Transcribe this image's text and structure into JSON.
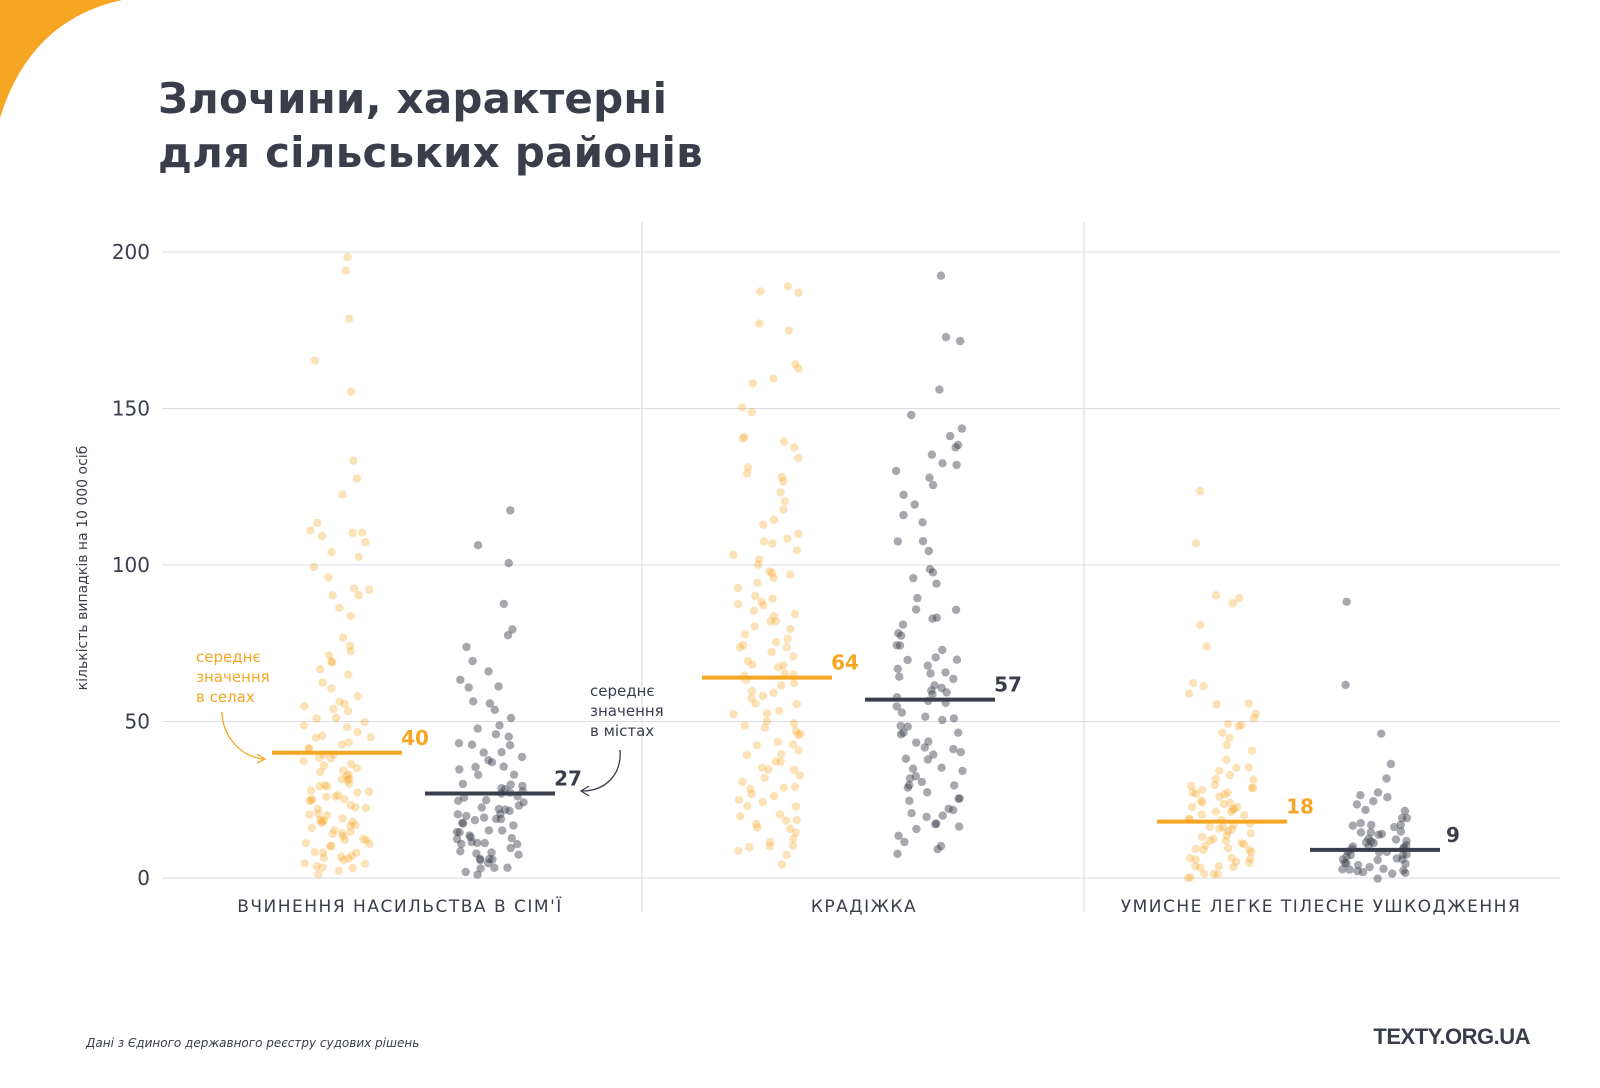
{
  "header": {
    "title_line1": "Злочини, характерні",
    "title_line2": "для сільських районів"
  },
  "colors": {
    "villages": "#f5a623",
    "cities": "#3a3e4b",
    "accent_corner": "#f5a623"
  },
  "annotations": {
    "villages_mean": [
      "середнє",
      "значення",
      "в селах"
    ],
    "cities_mean": [
      "середнє",
      "значення",
      "в містах"
    ]
  },
  "footer": {
    "source": "Дані з Єдиного державного реєстру судових рішень",
    "brand": "TEXTY.ORG.UA"
  },
  "chart_data": {
    "type": "scatter",
    "ylabel": "кількість випадків на 10 000 осіб",
    "ylim": [
      0,
      200
    ],
    "yticks": [
      0,
      50,
      100,
      150,
      200
    ],
    "grid": true,
    "groups": [
      {
        "category": "ВЧИНЕННЯ НАСИЛЬСТВА В СІМ'Ї",
        "series": [
          {
            "key": "villages",
            "mean": 40,
            "values": [
              198,
              195,
              179,
              166,
              156,
              133,
              127,
              122,
              114,
              111,
              111,
              110,
              109,
              108,
              104,
              102,
              99,
              96,
              92,
              92,
              91,
              90,
              87,
              83,
              76,
              74,
              72,
              71,
              70,
              68,
              66,
              64,
              62,
              60,
              58,
              57,
              56,
              55,
              54,
              53,
              52,
              51,
              50,
              49,
              48,
              47,
              46,
              45,
              45,
              44,
              43,
              42,
              41,
              40,
              40,
              39,
              38,
              37,
              37,
              36,
              35,
              35,
              34,
              33,
              33,
              32,
              31,
              31,
              30,
              30,
              29,
              29,
              28,
              28,
              27,
              27,
              26,
              26,
              25,
              25,
              24,
              24,
              23,
              23,
              22,
              22,
              21,
              21,
              20,
              20,
              19,
              19,
              18,
              18,
              17,
              17,
              16,
              16,
              15,
              15,
              14,
              14,
              13,
              13,
              12,
              12,
              11,
              11,
              10,
              10,
              9,
              9,
              8,
              8,
              7,
              7,
              6,
              6,
              5,
              5,
              4,
              4,
              3,
              3,
              2
            ]
          },
          {
            "key": "cities",
            "mean": 27,
            "values": [
              117,
              107,
              101,
              87,
              80,
              77,
              73,
              69,
              66,
              63,
              62,
              60,
              57,
              56,
              53,
              51,
              49,
              47,
              46,
              45,
              44,
              43,
              42,
              41,
              40,
              39,
              38,
              37,
              36,
              35,
              34,
              33,
              32,
              31,
              30,
              30,
              29,
              28,
              28,
              27,
              27,
              26,
              25,
              25,
              24,
              24,
              23,
              23,
              22,
              22,
              21,
              21,
              20,
              20,
              19,
              19,
              18,
              18,
              17,
              17,
              16,
              16,
              15,
              15,
              14,
              14,
              13,
              13,
              12,
              12,
              11,
              11,
              10,
              10,
              9,
              9,
              8,
              8,
              7,
              7,
              6,
              6,
              5,
              5,
              4,
              4,
              3,
              2,
              1
            ]
          }
        ]
      },
      {
        "category": "КРАДІЖКА",
        "series": [
          {
            "key": "villages",
            "mean": 64,
            "values": [
              189,
              188,
              187,
              177,
              175,
              165,
              162,
              160,
              158,
              151,
              148,
              141,
              140,
              139,
              137,
              134,
              131,
              129,
              128,
              127,
              124,
              120,
              117,
              114,
              112,
              110,
              109,
              108,
              106,
              104,
              103,
              101,
              100,
              98,
              97,
              96,
              95,
              94,
              92,
              91,
              90,
              89,
              88,
              87,
              86,
              84,
              83,
              82,
              81,
              80,
              79,
              78,
              77,
              76,
              75,
              74,
              73,
              72,
              71,
              70,
              69,
              68,
              67,
              66,
              65,
              64,
              63,
              62,
              61,
              60,
              59,
              58,
              57,
              56,
              55,
              54,
              53,
              52,
              51,
              50,
              49,
              48,
              47,
              46,
              45,
              44,
              43,
              42,
              41,
              40,
              39,
              38,
              37,
              36,
              35,
              34,
              33,
              32,
              31,
              30,
              29,
              28,
              27,
              26,
              25,
              24,
              23,
              22,
              21,
              20,
              19,
              18,
              17,
              16,
              15,
              14,
              13,
              12,
              11,
              10,
              9,
              8,
              7,
              4
            ]
          },
          {
            "key": "cities",
            "mean": 57,
            "values": [
              192,
              173,
              171,
              156,
              147,
              144,
              141,
              139,
              138,
              136,
              133,
              131,
              130,
              127,
              125,
              123,
              120,
              116,
              113,
              108,
              107,
              104,
              99,
              97,
              96,
              94,
              89,
              86,
              85,
              84,
              83,
              81,
              79,
              77,
              75,
              74,
              72,
              71,
              70,
              69,
              68,
              67,
              66,
              65,
              64,
              63,
              62,
              61,
              60,
              59,
              58,
              57,
              56,
              55,
              54,
              53,
              52,
              51,
              50,
              49,
              48,
              47,
              46,
              45,
              44,
              43,
              42,
              41,
              40,
              39,
              38,
              37,
              36,
              35,
              34,
              33,
              32,
              31,
              30,
              29,
              28,
              27,
              26,
              25,
              24,
              23,
              22,
              21,
              20,
              19,
              18,
              17,
              16,
              15,
              14,
              12,
              11,
              9,
              7
            ]
          }
        ]
      },
      {
        "category": "УМИСНЕ ЛЕГКЕ ТІЛЕСНЕ УШКОДЖЕННЯ",
        "series": [
          {
            "key": "villages",
            "mean": 18,
            "values": [
              123,
              107,
              90,
              89,
              88,
              80,
              74,
              63,
              62,
              58,
              56,
              55,
              53,
              52,
              50,
              49,
              48,
              46,
              44,
              42,
              40,
              38,
              36,
              35,
              34,
              33,
              32,
              31,
              30,
              30,
              29,
              29,
              28,
              28,
              27,
              27,
              26,
              26,
              25,
              25,
              24,
              24,
              23,
              23,
              22,
              22,
              21,
              21,
              20,
              20,
              19,
              19,
              18,
              18,
              17,
              17,
              16,
              16,
              15,
              15,
              14,
              14,
              13,
              13,
              12,
              12,
              11,
              11,
              10,
              10,
              9,
              9,
              8,
              8,
              7,
              7,
              6,
              6,
              5,
              5,
              4,
              4,
              3,
              3,
              2,
              2,
              1,
              1,
              0
            ]
          },
          {
            "key": "cities",
            "mean": 9,
            "values": [
              88,
              61,
              47,
              36,
              31,
              28,
              27,
              25,
              24,
              23,
              22,
              21,
              20,
              19,
              18,
              17,
              17,
              16,
              16,
              15,
              15,
              14,
              14,
              13,
              13,
              12,
              12,
              12,
              11,
              11,
              11,
              10,
              10,
              10,
              9,
              9,
              9,
              8,
              8,
              8,
              7,
              7,
              7,
              6,
              6,
              6,
              5,
              5,
              5,
              4,
              4,
              4,
              3,
              3,
              3,
              2,
              2,
              2,
              1,
              1,
              0
            ]
          }
        ]
      }
    ]
  }
}
